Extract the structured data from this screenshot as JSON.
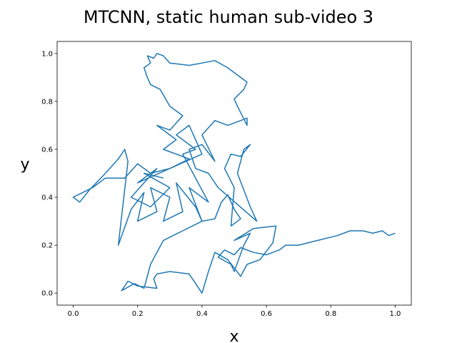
{
  "chart_data": {
    "type": "line",
    "title": "MTCNN, static human sub-video 3",
    "x_label": "x",
    "y_label": "y",
    "color": "#1f77b4",
    "x": [
      1.0,
      0.98,
      0.96,
      0.93,
      0.9,
      0.86,
      0.82,
      0.76,
      0.7,
      0.66,
      0.64,
      0.6,
      0.56,
      0.52,
      0.5,
      0.47,
      0.45,
      0.49,
      0.5,
      0.53,
      0.55,
      0.5,
      0.56,
      0.63,
      0.62,
      0.58,
      0.54,
      0.52,
      0.48,
      0.44,
      0.42,
      0.4,
      0.36,
      0.3,
      0.26,
      0.25,
      0.26,
      0.2,
      0.17,
      0.15,
      0.19,
      0.22,
      0.24,
      0.28,
      0.34,
      0.4,
      0.44,
      0.46,
      0.48,
      0.5,
      0.52,
      0.49,
      0.5,
      0.47,
      0.49,
      0.52,
      0.55,
      0.53,
      0.51,
      0.55,
      0.57,
      0.45,
      0.42,
      0.38,
      0.36,
      0.4,
      0.44,
      0.4,
      0.44,
      0.48,
      0.54,
      0.54,
      0.51,
      0.5,
      0.53,
      0.54,
      0.5,
      0.48,
      0.44,
      0.4,
      0.36,
      0.3,
      0.28,
      0.26,
      0.25,
      0.23,
      0.24,
      0.22,
      0.23,
      0.24,
      0.27,
      0.3,
      0.34,
      0.3,
      0.26,
      0.32,
      0.28,
      0.36,
      0.3,
      0.24,
      0.2,
      0.16,
      0.1,
      0.06,
      0.03,
      0.0,
      0.02,
      0.05,
      0.1,
      0.14,
      0.16,
      0.17,
      0.14,
      0.18,
      0.22,
      0.2,
      0.26,
      0.24,
      0.3,
      0.28,
      0.34,
      0.32,
      0.38,
      0.4,
      0.36,
      0.42,
      0.34,
      0.38,
      0.32,
      0.36,
      0.4,
      0.2,
      0.26,
      0.18,
      0.24,
      0.3,
      0.22,
      0.28
    ],
    "values": [
      0.25,
      0.24,
      0.26,
      0.25,
      0.26,
      0.26,
      0.24,
      0.22,
      0.2,
      0.2,
      0.18,
      0.16,
      0.17,
      0.19,
      0.16,
      0.18,
      0.15,
      0.12,
      0.09,
      0.2,
      0.25,
      0.22,
      0.27,
      0.28,
      0.21,
      0.14,
      0.12,
      0.07,
      0.14,
      0.17,
      0.09,
      0.0,
      0.08,
      0.09,
      0.08,
      0.06,
      0.02,
      0.03,
      0.05,
      0.01,
      0.04,
      0.02,
      0.12,
      0.22,
      0.26,
      0.3,
      0.31,
      0.38,
      0.41,
      0.35,
      0.31,
      0.28,
      0.44,
      0.52,
      0.58,
      0.57,
      0.62,
      0.6,
      0.5,
      0.36,
      0.3,
      0.44,
      0.5,
      0.52,
      0.6,
      0.62,
      0.55,
      0.66,
      0.72,
      0.7,
      0.73,
      0.7,
      0.78,
      0.81,
      0.85,
      0.88,
      0.92,
      0.94,
      0.97,
      0.96,
      0.95,
      0.96,
      0.99,
      1.0,
      0.98,
      0.99,
      0.96,
      0.94,
      0.9,
      0.87,
      0.85,
      0.78,
      0.74,
      0.68,
      0.7,
      0.64,
      0.6,
      0.56,
      0.52,
      0.5,
      0.54,
      0.48,
      0.48,
      0.44,
      0.42,
      0.4,
      0.38,
      0.43,
      0.5,
      0.56,
      0.6,
      0.55,
      0.2,
      0.35,
      0.42,
      0.3,
      0.34,
      0.44,
      0.4,
      0.3,
      0.34,
      0.46,
      0.36,
      0.3,
      0.44,
      0.38,
      0.58,
      0.6,
      0.66,
      0.7,
      0.58,
      0.46,
      0.52,
      0.4,
      0.36,
      0.44,
      0.5,
      0.48
    ],
    "xlim": [
      -0.05,
      1.05
    ],
    "ylim": [
      -0.05,
      1.05
    ],
    "xticks": [
      {
        "value": 0,
        "label": "0.0"
      },
      0.2,
      0.4,
      0.6,
      0.8,
      {
        "value": 1,
        "label": "1.0"
      }
    ],
    "yticks": [
      {
        "value": 0,
        "label": "0.0"
      },
      0.2,
      0.4,
      0.6,
      0.8,
      {
        "value": 1,
        "label": "1.0"
      }
    ]
  }
}
